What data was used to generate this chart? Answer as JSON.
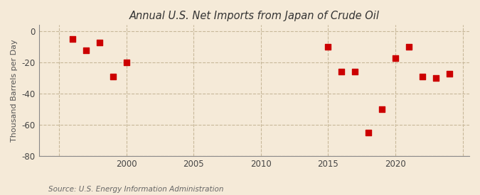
{
  "title": "Annual U.S. Net Imports from Japan of Crude Oil",
  "ylabel": "Thousand Barrels per Day",
  "source": "Source: U.S. Energy Information Administration",
  "background_color": "#f5ead8",
  "plot_background_color": "#f5ead8",
  "marker_color": "#cc0000",
  "marker_size": 28,
  "ylim": [
    -80,
    4
  ],
  "yticks": [
    0,
    -20,
    -40,
    -60,
    -80
  ],
  "xlim": [
    1993.5,
    2025.5
  ],
  "xticks": [
    1995,
    2000,
    2005,
    2010,
    2015,
    2020,
    2025
  ],
  "xtick_labels": [
    "",
    "2000",
    "2005",
    "2010",
    "2015",
    "2020",
    ""
  ],
  "grid_color": "#c8b89a",
  "grid_linestyle": "--",
  "years": [
    1996,
    1997,
    1998,
    1999,
    2000,
    2015,
    2016,
    2017,
    2018,
    2019,
    2020,
    2021,
    2022,
    2023,
    2024
  ],
  "values": [
    -5,
    -12,
    -7,
    -29,
    -20,
    -10,
    -26,
    -26,
    -65,
    -50,
    -17,
    -10,
    -29,
    -30,
    -27
  ]
}
